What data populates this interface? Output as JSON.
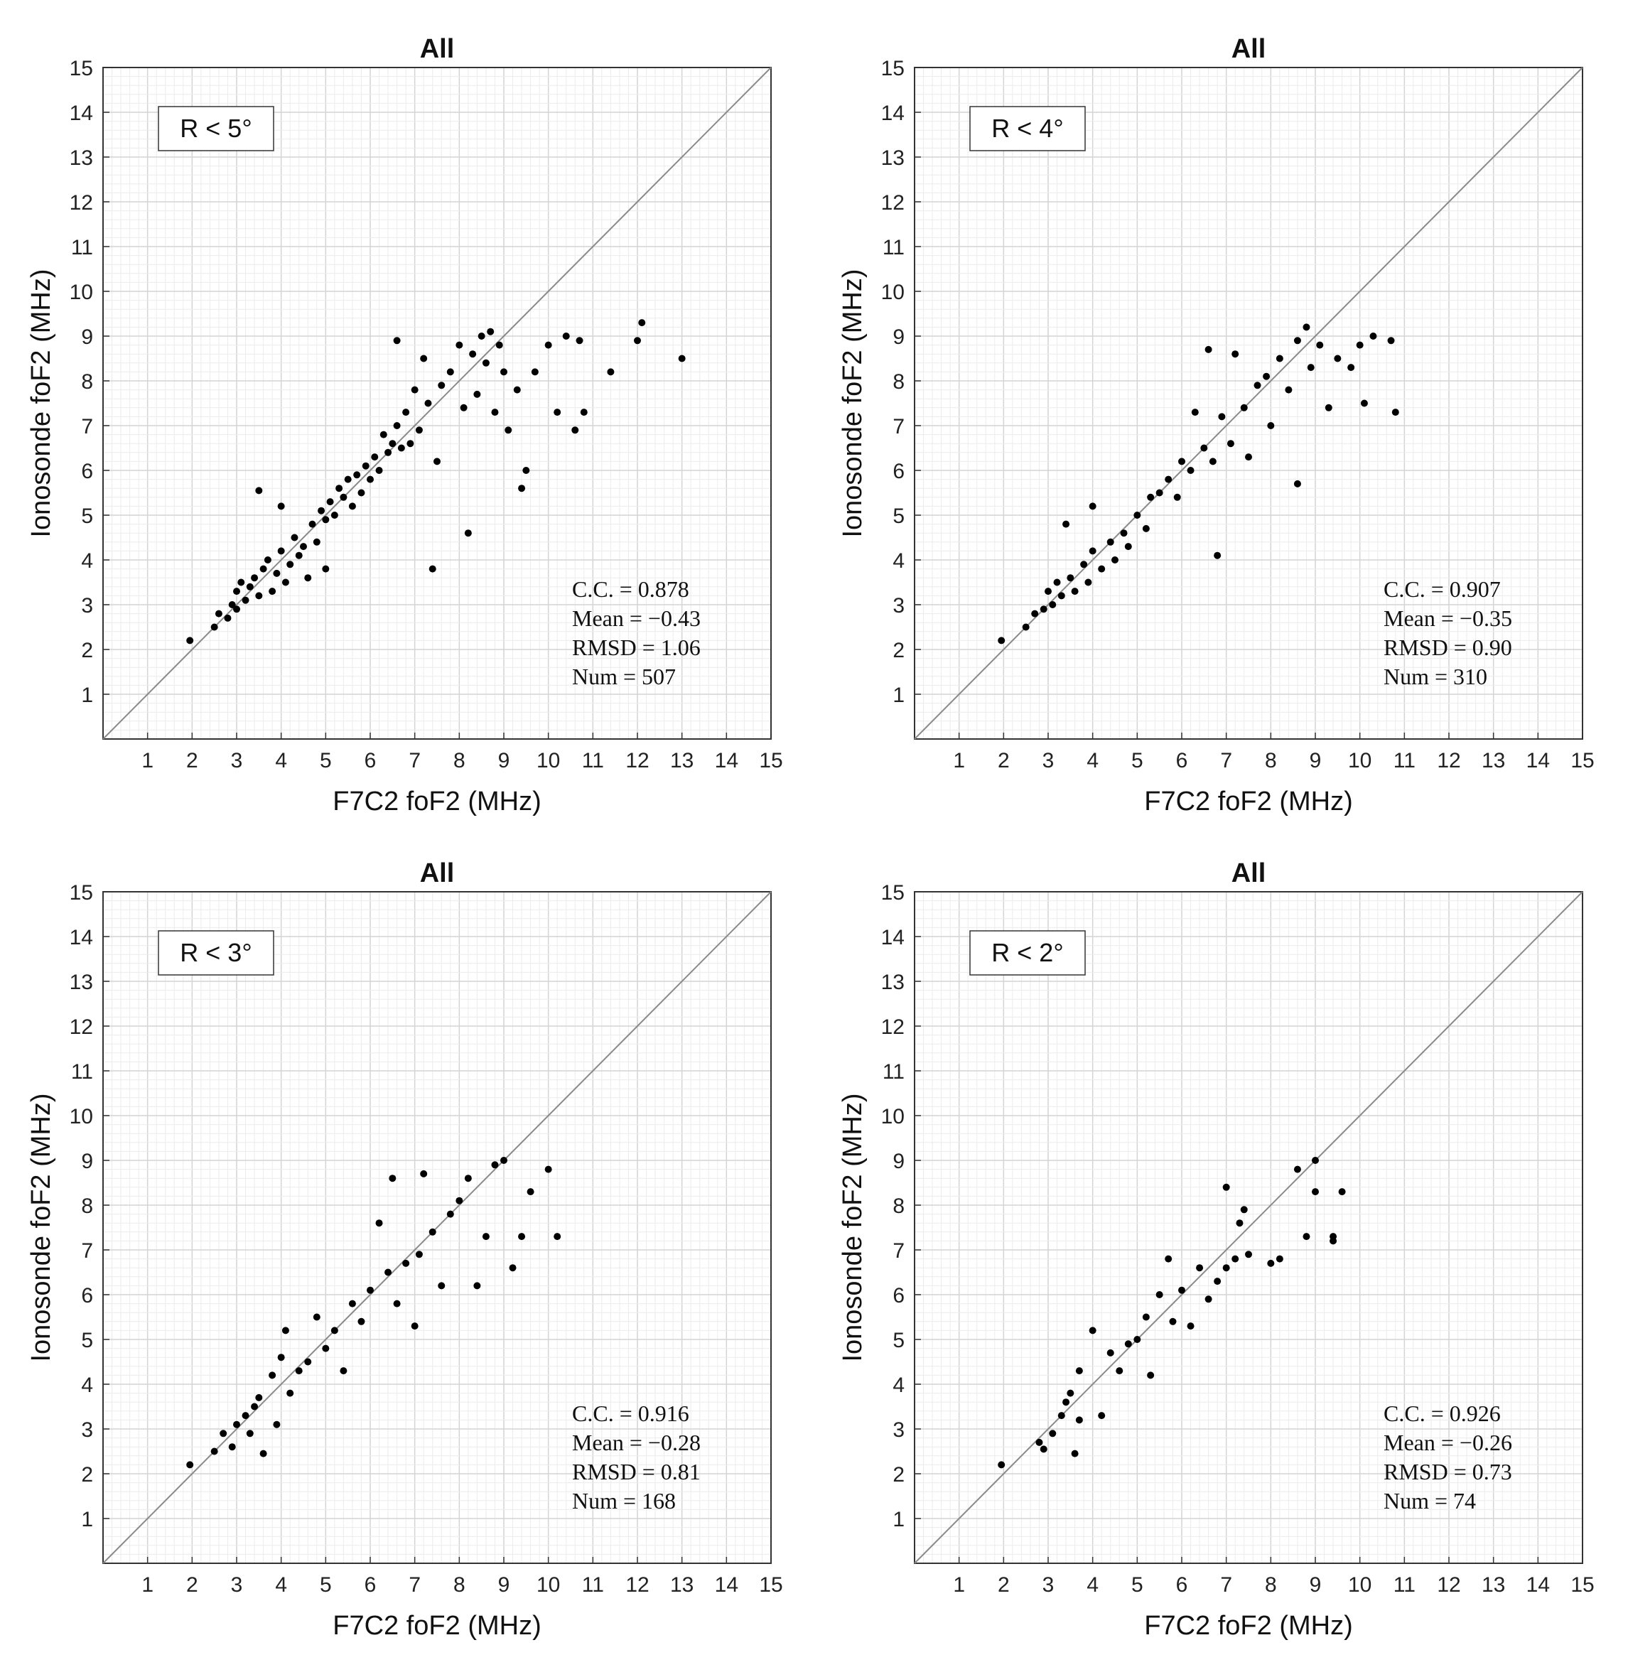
{
  "chart_data": [
    {
      "type": "scatter",
      "title": "All",
      "xlabel": "F7C2 foF2 (MHz)",
      "ylabel": "Ionosonde foF2 (MHz)",
      "xlim": [
        0,
        15
      ],
      "ylim": [
        0,
        15
      ],
      "xticks": [
        1,
        2,
        3,
        4,
        5,
        6,
        7,
        8,
        9,
        10,
        11,
        12,
        13,
        14,
        15
      ],
      "yticks": [
        1,
        2,
        3,
        4,
        5,
        6,
        7,
        8,
        9,
        10,
        11,
        12,
        13,
        14,
        15
      ],
      "grid": true,
      "region_label": "R < 5°",
      "stats": [
        "C.C. = 0.878",
        "Mean = −0.43",
        "RMSD = 1.06",
        "Num = 507"
      ],
      "diagonal": true,
      "points": [
        [
          1.95,
          2.2
        ],
        [
          2.5,
          2.5
        ],
        [
          2.6,
          2.8
        ],
        [
          2.8,
          2.7
        ],
        [
          2.9,
          3.0
        ],
        [
          3.0,
          2.9
        ],
        [
          3.0,
          3.3
        ],
        [
          3.1,
          3.5
        ],
        [
          3.2,
          3.1
        ],
        [
          3.3,
          3.4
        ],
        [
          3.4,
          3.6
        ],
        [
          3.5,
          3.2
        ],
        [
          3.5,
          5.55
        ],
        [
          3.6,
          3.8
        ],
        [
          3.7,
          4.0
        ],
        [
          3.8,
          3.3
        ],
        [
          3.9,
          3.7
        ],
        [
          4.0,
          4.2
        ],
        [
          4.0,
          5.2
        ],
        [
          4.1,
          3.5
        ],
        [
          4.2,
          3.9
        ],
        [
          4.3,
          4.5
        ],
        [
          4.4,
          4.1
        ],
        [
          4.5,
          4.3
        ],
        [
          4.6,
          3.6
        ],
        [
          4.7,
          4.8
        ],
        [
          4.8,
          4.4
        ],
        [
          4.9,
          5.1
        ],
        [
          5.0,
          4.9
        ],
        [
          5.0,
          3.8
        ],
        [
          5.1,
          5.3
        ],
        [
          5.2,
          5.0
        ],
        [
          5.3,
          5.6
        ],
        [
          5.4,
          5.4
        ],
        [
          5.5,
          5.8
        ],
        [
          5.6,
          5.2
        ],
        [
          5.7,
          5.9
        ],
        [
          5.8,
          5.5
        ],
        [
          5.9,
          6.1
        ],
        [
          6.0,
          5.8
        ],
        [
          6.1,
          6.3
        ],
        [
          6.2,
          6.0
        ],
        [
          6.3,
          6.8
        ],
        [
          6.4,
          6.4
        ],
        [
          6.5,
          6.6
        ],
        [
          6.6,
          7.0
        ],
        [
          6.6,
          8.9
        ],
        [
          6.7,
          6.5
        ],
        [
          6.8,
          7.3
        ],
        [
          6.9,
          6.6
        ],
        [
          7.0,
          7.8
        ],
        [
          7.1,
          6.9
        ],
        [
          7.2,
          8.5
        ],
        [
          7.3,
          7.5
        ],
        [
          7.4,
          3.8
        ],
        [
          7.5,
          6.2
        ],
        [
          7.6,
          7.9
        ],
        [
          7.8,
          8.2
        ],
        [
          8.0,
          8.8
        ],
        [
          8.1,
          7.4
        ],
        [
          8.2,
          4.6
        ],
        [
          8.3,
          8.6
        ],
        [
          8.4,
          7.7
        ],
        [
          8.5,
          9.0
        ],
        [
          8.6,
          8.4
        ],
        [
          8.7,
          9.1
        ],
        [
          8.8,
          7.3
        ],
        [
          8.9,
          8.8
        ],
        [
          9.0,
          8.2
        ],
        [
          9.1,
          6.9
        ],
        [
          9.3,
          7.8
        ],
        [
          9.4,
          5.6
        ],
        [
          9.5,
          6.0
        ],
        [
          9.7,
          8.2
        ],
        [
          10.0,
          8.8
        ],
        [
          10.2,
          7.3
        ],
        [
          10.4,
          9.0
        ],
        [
          10.6,
          6.9
        ],
        [
          10.7,
          8.9
        ],
        [
          10.8,
          7.3
        ],
        [
          11.4,
          8.2
        ],
        [
          12.0,
          8.9
        ],
        [
          12.1,
          9.3
        ],
        [
          13.0,
          8.5
        ]
      ]
    },
    {
      "type": "scatter",
      "title": "All",
      "xlabel": "F7C2 foF2 (MHz)",
      "ylabel": "Ionosonde foF2 (MHz)",
      "xlim": [
        0,
        15
      ],
      "ylim": [
        0,
        15
      ],
      "xticks": [
        1,
        2,
        3,
        4,
        5,
        6,
        7,
        8,
        9,
        10,
        11,
        12,
        13,
        14,
        15
      ],
      "yticks": [
        1,
        2,
        3,
        4,
        5,
        6,
        7,
        8,
        9,
        10,
        11,
        12,
        13,
        14,
        15
      ],
      "grid": true,
      "region_label": "R < 4°",
      "stats": [
        "C.C. = 0.907",
        "Mean = −0.35",
        "RMSD = 0.90",
        "Num = 310"
      ],
      "diagonal": true,
      "points": [
        [
          1.95,
          2.2
        ],
        [
          2.5,
          2.5
        ],
        [
          2.7,
          2.8
        ],
        [
          2.9,
          2.9
        ],
        [
          3.0,
          3.3
        ],
        [
          3.1,
          3.0
        ],
        [
          3.2,
          3.5
        ],
        [
          3.3,
          3.2
        ],
        [
          3.4,
          4.8
        ],
        [
          3.5,
          3.6
        ],
        [
          3.6,
          3.3
        ],
        [
          3.8,
          3.9
        ],
        [
          3.9,
          3.5
        ],
        [
          4.0,
          4.2
        ],
        [
          4.0,
          5.2
        ],
        [
          4.2,
          3.8
        ],
        [
          4.4,
          4.4
        ],
        [
          4.5,
          4.0
        ],
        [
          4.7,
          4.6
        ],
        [
          4.8,
          4.3
        ],
        [
          5.0,
          5.0
        ],
        [
          5.2,
          4.7
        ],
        [
          5.3,
          5.4
        ],
        [
          5.5,
          5.5
        ],
        [
          5.7,
          5.8
        ],
        [
          5.9,
          5.4
        ],
        [
          6.0,
          6.2
        ],
        [
          6.2,
          6.0
        ],
        [
          6.3,
          7.3
        ],
        [
          6.5,
          6.5
        ],
        [
          6.6,
          8.7
        ],
        [
          6.7,
          6.2
        ],
        [
          6.8,
          4.1
        ],
        [
          6.9,
          7.2
        ],
        [
          7.1,
          6.6
        ],
        [
          7.2,
          8.6
        ],
        [
          7.4,
          7.4
        ],
        [
          7.5,
          6.3
        ],
        [
          7.7,
          7.9
        ],
        [
          7.9,
          8.1
        ],
        [
          8.0,
          7.0
        ],
        [
          8.2,
          8.5
        ],
        [
          8.4,
          7.8
        ],
        [
          8.6,
          5.7
        ],
        [
          8.6,
          8.9
        ],
        [
          8.8,
          9.2
        ],
        [
          8.9,
          8.3
        ],
        [
          9.1,
          8.8
        ],
        [
          9.3,
          7.4
        ],
        [
          9.5,
          8.5
        ],
        [
          9.8,
          8.3
        ],
        [
          10.0,
          8.8
        ],
        [
          10.1,
          7.5
        ],
        [
          10.3,
          9.0
        ],
        [
          10.7,
          8.9
        ],
        [
          10.8,
          7.3
        ]
      ]
    },
    {
      "type": "scatter",
      "title": "All",
      "xlabel": "F7C2 foF2 (MHz)",
      "ylabel": "Ionosonde foF2 (MHz)",
      "xlim": [
        0,
        15
      ],
      "ylim": [
        0,
        15
      ],
      "xticks": [
        1,
        2,
        3,
        4,
        5,
        6,
        7,
        8,
        9,
        10,
        11,
        12,
        13,
        14,
        15
      ],
      "yticks": [
        1,
        2,
        3,
        4,
        5,
        6,
        7,
        8,
        9,
        10,
        11,
        12,
        13,
        14,
        15
      ],
      "grid": true,
      "region_label": "R < 3°",
      "stats": [
        "C.C. = 0.916",
        "Mean = −0.28",
        "RMSD = 0.81",
        "Num = 168"
      ],
      "diagonal": true,
      "points": [
        [
          1.95,
          2.2
        ],
        [
          2.5,
          2.5
        ],
        [
          2.7,
          2.9
        ],
        [
          2.9,
          2.6
        ],
        [
          3.0,
          3.1
        ],
        [
          3.2,
          3.3
        ],
        [
          3.3,
          2.9
        ],
        [
          3.4,
          3.5
        ],
        [
          3.5,
          3.7
        ],
        [
          3.6,
          2.45
        ],
        [
          3.8,
          4.2
        ],
        [
          3.9,
          3.1
        ],
        [
          4.0,
          4.6
        ],
        [
          4.1,
          5.2
        ],
        [
          4.2,
          3.8
        ],
        [
          4.4,
          4.3
        ],
        [
          4.6,
          4.5
        ],
        [
          4.8,
          5.5
        ],
        [
          5.0,
          4.8
        ],
        [
          5.2,
          5.2
        ],
        [
          5.4,
          4.3
        ],
        [
          5.6,
          5.8
        ],
        [
          5.8,
          5.4
        ],
        [
          6.0,
          6.1
        ],
        [
          6.2,
          7.6
        ],
        [
          6.4,
          6.5
        ],
        [
          6.5,
          8.6
        ],
        [
          6.6,
          5.8
        ],
        [
          6.8,
          6.7
        ],
        [
          7.0,
          5.3
        ],
        [
          7.1,
          6.9
        ],
        [
          7.2,
          8.7
        ],
        [
          7.4,
          7.4
        ],
        [
          7.6,
          6.2
        ],
        [
          7.8,
          7.8
        ],
        [
          8.0,
          8.1
        ],
        [
          8.2,
          8.6
        ],
        [
          8.4,
          6.2
        ],
        [
          8.6,
          7.3
        ],
        [
          8.8,
          8.9
        ],
        [
          9.0,
          9.0
        ],
        [
          9.2,
          6.6
        ],
        [
          9.4,
          7.3
        ],
        [
          9.6,
          8.3
        ],
        [
          10.0,
          8.8
        ],
        [
          10.2,
          7.3
        ]
      ]
    },
    {
      "type": "scatter",
      "title": "All",
      "xlabel": "F7C2 foF2 (MHz)",
      "ylabel": "Ionosonde foF2 (MHz)",
      "xlim": [
        0,
        15
      ],
      "ylim": [
        0,
        15
      ],
      "xticks": [
        1,
        2,
        3,
        4,
        5,
        6,
        7,
        8,
        9,
        10,
        11,
        12,
        13,
        14,
        15
      ],
      "yticks": [
        1,
        2,
        3,
        4,
        5,
        6,
        7,
        8,
        9,
        10,
        11,
        12,
        13,
        14,
        15
      ],
      "grid": true,
      "region_label": "R < 2°",
      "stats": [
        "C.C. = 0.926",
        "Mean = −0.26",
        "RMSD = 0.73",
        "Num = 74"
      ],
      "diagonal": true,
      "points": [
        [
          1.95,
          2.2
        ],
        [
          2.8,
          2.7
        ],
        [
          2.9,
          2.55
        ],
        [
          3.1,
          2.9
        ],
        [
          3.3,
          3.3
        ],
        [
          3.4,
          3.6
        ],
        [
          3.5,
          3.8
        ],
        [
          3.6,
          2.45
        ],
        [
          3.7,
          3.2
        ],
        [
          3.7,
          4.3
        ],
        [
          4.0,
          5.2
        ],
        [
          4.2,
          3.3
        ],
        [
          4.4,
          4.7
        ],
        [
          4.6,
          4.3
        ],
        [
          4.8,
          4.9
        ],
        [
          5.0,
          5.0
        ],
        [
          5.2,
          5.5
        ],
        [
          5.3,
          4.2
        ],
        [
          5.5,
          6.0
        ],
        [
          5.7,
          6.8
        ],
        [
          5.8,
          5.4
        ],
        [
          6.0,
          6.1
        ],
        [
          6.2,
          5.3
        ],
        [
          6.4,
          6.6
        ],
        [
          6.6,
          5.9
        ],
        [
          6.8,
          6.3
        ],
        [
          7.0,
          6.6
        ],
        [
          7.0,
          8.4
        ],
        [
          7.2,
          6.8
        ],
        [
          7.3,
          7.6
        ],
        [
          7.4,
          7.9
        ],
        [
          7.5,
          6.9
        ],
        [
          8.0,
          6.7
        ],
        [
          8.2,
          6.8
        ],
        [
          8.6,
          8.8
        ],
        [
          8.8,
          7.3
        ],
        [
          9.0,
          9.0
        ],
        [
          9.0,
          8.3
        ],
        [
          9.4,
          7.2
        ],
        [
          9.4,
          7.3
        ],
        [
          9.6,
          8.3
        ]
      ]
    }
  ]
}
